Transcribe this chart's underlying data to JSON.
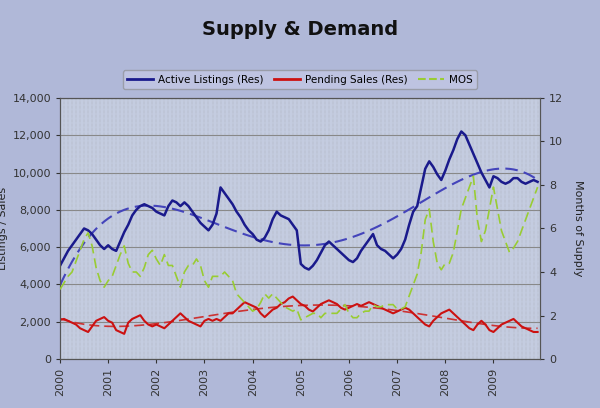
{
  "title": "Supply & Demand",
  "fig_bg_color": "#b0b8d8",
  "plot_bg_color": "#c0c8e0",
  "ylabel_left": "Listings / Sales",
  "ylabel_right": "Months of Supply",
  "ylim_left": [
    0,
    14000
  ],
  "ylim_right": [
    0,
    12
  ],
  "yticks_left": [
    0,
    2000,
    4000,
    6000,
    8000,
    10000,
    12000,
    14000
  ],
  "yticks_right": [
    0,
    2,
    4,
    6,
    8,
    10,
    12
  ],
  "active_listings": [
    5000,
    5400,
    5800,
    6100,
    6400,
    6700,
    7000,
    6900,
    6700,
    6400,
    6100,
    5900,
    6100,
    5900,
    5800,
    6300,
    6800,
    7200,
    7700,
    8000,
    8200,
    8300,
    8200,
    8100,
    7900,
    7800,
    7700,
    8200,
    8500,
    8400,
    8200,
    8400,
    8200,
    7900,
    7600,
    7300,
    7100,
    6900,
    7200,
    7800,
    9200,
    8900,
    8600,
    8300,
    7900,
    7600,
    7200,
    6900,
    6700,
    6400,
    6300,
    6500,
    6900,
    7500,
    7900,
    7700,
    7600,
    7500,
    7200,
    6900,
    5100,
    4900,
    4800,
    5000,
    5300,
    5700,
    6100,
    6300,
    6100,
    5900,
    5700,
    5500,
    5300,
    5200,
    5400,
    5800,
    6100,
    6400,
    6700,
    6100,
    5900,
    5800,
    5600,
    5400,
    5600,
    5900,
    6400,
    7200,
    7900,
    8200,
    9200,
    10200,
    10600,
    10300,
    9900,
    9600,
    10100,
    10700,
    11200,
    11800,
    12200,
    12000,
    11500,
    11000,
    10500,
    10000,
    9600,
    9200,
    9800,
    9700,
    9500,
    9400,
    9500,
    9700,
    9700,
    9500,
    9400,
    9500,
    9600,
    9500
  ],
  "pending_sales": [
    2100,
    2150,
    2050,
    1950,
    1850,
    1650,
    1550,
    1450,
    1750,
    2050,
    2150,
    2250,
    2050,
    1950,
    1550,
    1450,
    1350,
    1950,
    2150,
    2250,
    2350,
    2050,
    1850,
    1750,
    1850,
    1750,
    1650,
    1850,
    2050,
    2250,
    2450,
    2250,
    2050,
    1950,
    1850,
    1750,
    2050,
    2150,
    2050,
    2150,
    2050,
    2250,
    2450,
    2450,
    2650,
    2850,
    3050,
    2950,
    2850,
    2750,
    2450,
    2250,
    2450,
    2650,
    2750,
    2950,
    3050,
    3250,
    3350,
    3150,
    2950,
    2850,
    2650,
    2550,
    2750,
    2950,
    3050,
    3150,
    3050,
    2950,
    2750,
    2650,
    2750,
    2850,
    2950,
    2850,
    2950,
    3050,
    2950,
    2850,
    2750,
    2650,
    2550,
    2450,
    2550,
    2650,
    2750,
    2650,
    2450,
    2250,
    2050,
    1850,
    1750,
    2050,
    2250,
    2450,
    2550,
    2650,
    2450,
    2250,
    2050,
    1850,
    1650,
    1550,
    1850,
    2050,
    1850,
    1550,
    1450,
    1650,
    1850,
    1950,
    2050,
    2150,
    1950,
    1750,
    1650,
    1550,
    1450,
    1450
  ],
  "mos": [
    3.2,
    3.5,
    3.8,
    4.0,
    4.5,
    5.0,
    5.5,
    5.8,
    5.2,
    4.2,
    3.6,
    3.3,
    3.6,
    3.8,
    4.3,
    4.8,
    5.2,
    4.4,
    4.0,
    4.0,
    3.8,
    4.2,
    4.8,
    5.0,
    4.6,
    4.3,
    4.8,
    4.3,
    4.3,
    3.8,
    3.3,
    4.0,
    4.3,
    4.3,
    4.6,
    4.3,
    3.6,
    3.3,
    3.8,
    3.8,
    3.8,
    4.0,
    3.8,
    3.6,
    3.0,
    2.8,
    2.6,
    2.4,
    2.2,
    2.3,
    2.6,
    3.0,
    2.8,
    3.0,
    2.8,
    2.6,
    2.4,
    2.3,
    2.2,
    2.3,
    1.8,
    1.9,
    2.0,
    2.1,
    2.1,
    1.9,
    2.1,
    2.1,
    2.1,
    2.1,
    2.3,
    2.5,
    2.1,
    1.9,
    1.9,
    2.1,
    2.2,
    2.2,
    2.5,
    2.4,
    2.4,
    2.5,
    2.5,
    2.5,
    2.3,
    2.3,
    2.4,
    2.9,
    3.4,
    3.9,
    4.9,
    6.4,
    6.9,
    5.4,
    4.4,
    4.1,
    4.4,
    4.4,
    4.9,
    5.9,
    6.9,
    7.4,
    7.9,
    8.4,
    6.4,
    5.4,
    5.9,
    6.9,
    7.9,
    6.9,
    5.9,
    5.4,
    4.9,
    5.1,
    5.4,
    5.9,
    6.4,
    6.9,
    7.4,
    7.9
  ],
  "line_colors": {
    "active": "#1a1a8c",
    "pending": "#cc1111",
    "mos": "#99cc33",
    "trend_active": "#4444bb",
    "trend_pending": "#cc3333"
  },
  "grid_major_color": "#888888",
  "grid_minor_color": "#aaaaaa",
  "tick_fontsize": 8,
  "label_fontsize": 8,
  "title_fontsize": 14
}
